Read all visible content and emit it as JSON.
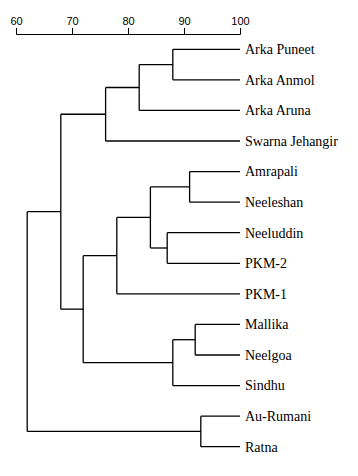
{
  "chart_data": {
    "type": "dendrogram",
    "color": "#000000",
    "xlim": [
      60,
      100
    ],
    "xticks": [
      60,
      70,
      80,
      90,
      100
    ],
    "tree": {
      "value": 62,
      "children": [
        {
          "value": 68,
          "children": [
            {
              "value": 76,
              "children": [
                {
                  "value": 82,
                  "children": [
                    {
                      "value": 88,
                      "children": [
                        "Arka Puneet",
                        "Arka Anmol"
                      ]
                    },
                    "Arka Aruna"
                  ]
                },
                "Swarna Jehangir"
              ]
            },
            {
              "value": 72,
              "children": [
                {
                  "value": 78,
                  "children": [
                    {
                      "value": 84,
                      "children": [
                        {
                          "value": 91,
                          "children": [
                            "Amrapali",
                            "Neeleshan"
                          ]
                        },
                        {
                          "value": 87,
                          "children": [
                            "Neeluddin",
                            "PKM-2"
                          ]
                        }
                      ]
                    },
                    "PKM-1"
                  ]
                },
                {
                  "value": 88,
                  "children": [
                    {
                      "value": 92,
                      "children": [
                        "Mallika",
                        "Neelgoa"
                      ]
                    },
                    "Sindhu"
                  ]
                }
              ]
            }
          ]
        },
        {
          "value": 93,
          "children": [
            "Au-Rumani",
            "Ratna"
          ]
        }
      ]
    }
  }
}
